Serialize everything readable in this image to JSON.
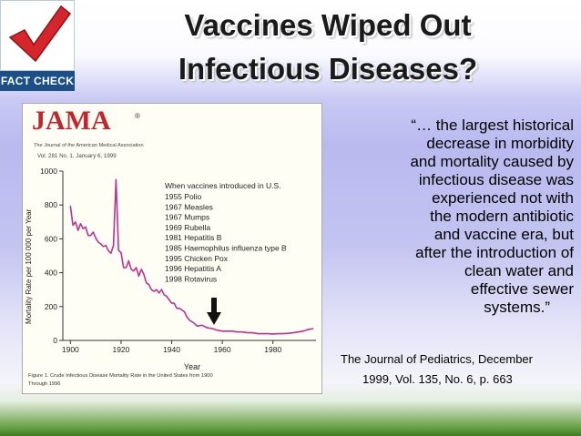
{
  "logo": {
    "text": "FACT CHECK",
    "check_color": "#d6262b"
  },
  "title": {
    "line1": "Vaccines Wiped Out",
    "line2": "Infectious Diseases?"
  },
  "figure": {
    "brand": "JAMA",
    "brand_mark": "®",
    "brand_subtitle": "The Journal of the American Medical Association",
    "issue": "Vol. 281 No. 1, January 6, 1999",
    "caption_lines": [
      "Figure 1. Crude Infectious Disease Mortality Rate in the United States from 1900",
      "Through 1996"
    ],
    "arrow_icon": "down-arrow-icon"
  },
  "chart_data": {
    "type": "line",
    "xlabel": "Year",
    "ylabel": "Mortality Rate per 100 000 per Year",
    "xlim": [
      1897,
      1997
    ],
    "ylim": [
      0,
      1000
    ],
    "xticks": [
      1900,
      1920,
      1940,
      1960,
      1980
    ],
    "yticks": [
      0,
      200,
      400,
      600,
      800,
      1000
    ],
    "legend_title": "When vaccines introduced in U.S.",
    "legend_items": [
      "1955 Polio",
      "1967 Measles",
      "1967 Mumps",
      "1969 Rubella",
      "1981 Hepatitis B",
      "1985 Haemophilus influenza type B",
      "1995 Chicken Pox",
      "1996 Hepatitis A",
      "1998 Rotavirus"
    ],
    "series": [
      {
        "x": [
          1900,
          1901,
          1902,
          1903,
          1904,
          1905,
          1906,
          1907,
          1908,
          1909,
          1910,
          1911,
          1912,
          1913,
          1914,
          1915,
          1916,
          1917,
          1918,
          1919,
          1920,
          1921,
          1922,
          1923,
          1924,
          1925,
          1926,
          1927,
          1928,
          1929,
          1930,
          1931,
          1932,
          1933,
          1934,
          1935,
          1936,
          1937,
          1938,
          1939,
          1940,
          1941,
          1942,
          1943,
          1944,
          1945,
          1946,
          1947,
          1948,
          1949,
          1950,
          1952,
          1954,
          1956,
          1958,
          1960,
          1962,
          1964,
          1966,
          1968,
          1970,
          1972,
          1974,
          1976,
          1978,
          1980,
          1982,
          1984,
          1986,
          1988,
          1990,
          1992,
          1994,
          1996
        ],
        "y": [
          795,
          680,
          700,
          650,
          690,
          660,
          670,
          620,
          620,
          640,
          605,
          580,
          570,
          555,
          560,
          530,
          515,
          560,
          950,
          530,
          520,
          430,
          430,
          470,
          420,
          410,
          430,
          380,
          420,
          390,
          340,
          330,
          300,
          290,
          300,
          280,
          300,
          270,
          260,
          240,
          220,
          220,
          190,
          190,
          180,
          170,
          140,
          120,
          110,
          100,
          85,
          90,
          75,
          70,
          60,
          55,
          55,
          55,
          50,
          50,
          45,
          45,
          40,
          40,
          40,
          38,
          40,
          40,
          42,
          45,
          50,
          55,
          65,
          70
        ]
      }
    ]
  },
  "quote_lines": [
    "“… the largest historical",
    "decrease in morbidity",
    "and mortality caused by",
    "infectious disease was",
    "experienced not with",
    "the modern antibiotic",
    "and vaccine era, but",
    "after the introduction of",
    "clean water and",
    "effective sewer",
    "systems.”"
  ],
  "citation": {
    "line1": "The Journal of Pediatrics, December",
    "line2": "1999, Vol. 135, No. 6, p. 663"
  }
}
